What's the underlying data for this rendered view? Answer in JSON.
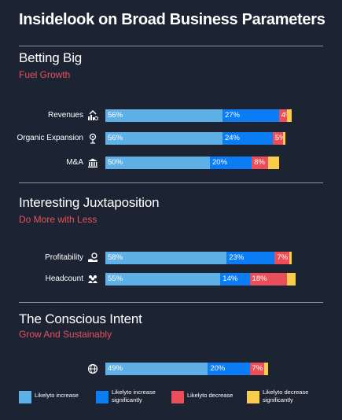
{
  "page": {
    "title": "Insidelook on Broad Business Parameters"
  },
  "colors": {
    "likely_increase": "#5fb0e6",
    "likely_increase_sig": "#0a7df4",
    "likely_decrease": "#ea4f59",
    "likely_decrease_sig": "#f7cd4b",
    "accent": "#e9505a",
    "background": "#1c2433"
  },
  "sections": [
    {
      "title": "Betting Big",
      "subtitle": "Fuel Growth"
    },
    {
      "title": "Interesting Juxtaposition",
      "subtitle": "Do More with Less"
    },
    {
      "title": "The Conscious Intent",
      "subtitle": "Grow And Sustainably"
    }
  ],
  "icons": [
    "revenue-icon",
    "organic-expansion-icon",
    "bank-icon",
    "profitability-icon",
    "headcount-icon",
    "globe-icon"
  ],
  "chart_data": {
    "type": "bar",
    "orientation": "horizontal",
    "stacked": true,
    "categories": [
      "Revenues",
      "Organic Expansion",
      "M&A",
      "Profitability",
      "Headcount",
      ""
    ],
    "series": [
      {
        "name": "Likelyto increase",
        "values": [
          56,
          56,
          50,
          58,
          55,
          49
        ],
        "labels": [
          "56%",
          "56%",
          "50%",
          "58%",
          "55%",
          "49%"
        ]
      },
      {
        "name": "Likelyto increase significantly",
        "values": [
          27,
          24,
          20,
          23,
          14,
          20
        ],
        "labels": [
          "27%",
          "24%",
          "20%",
          "23%",
          "14%",
          "20%"
        ]
      },
      {
        "name": "Likelyto decrease",
        "values": [
          4,
          5,
          8,
          7,
          18,
          7
        ],
        "labels": [
          "4%",
          "5%",
          "8%",
          "7%",
          "18%",
          "7%"
        ]
      },
      {
        "name": "Likelyto decrease significantly",
        "values": [
          2,
          1,
          5,
          1,
          4,
          2
        ],
        "labels": [
          "",
          "",
          "",
          "",
          "",
          ""
        ]
      }
    ],
    "xlim": [
      0,
      100
    ],
    "legend": "bottom"
  }
}
